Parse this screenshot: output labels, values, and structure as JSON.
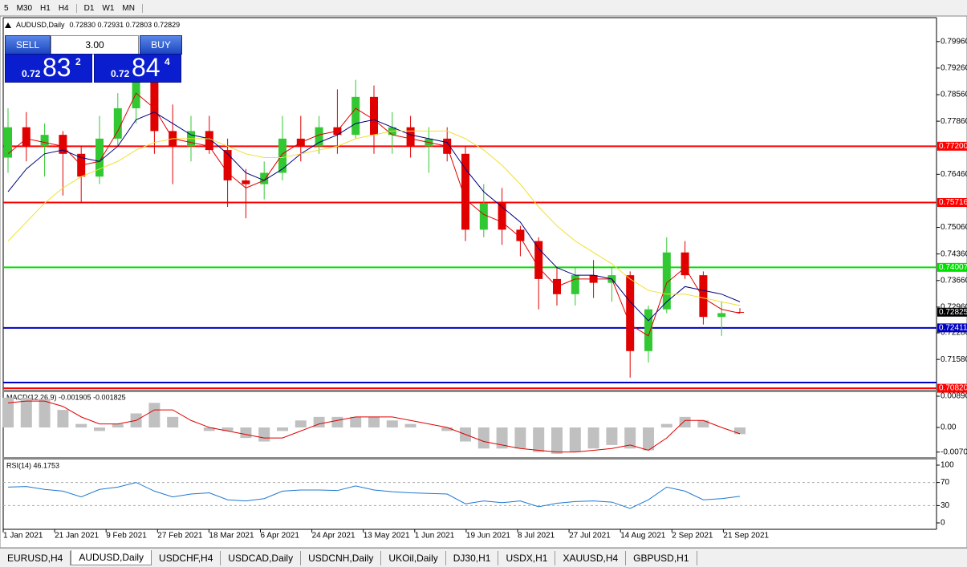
{
  "toolbar": {
    "groups": [
      [
        "5",
        "M30",
        "H1",
        "H4"
      ],
      [
        "D1",
        "W1",
        "MN"
      ]
    ]
  },
  "header": {
    "symbol": "AUDUSD,Daily",
    "ohlc": "0.72830 0.72931 0.72803 0.72829"
  },
  "trade_panel": {
    "sell": "SELL",
    "buy": "BUY",
    "lots": "3.00",
    "bid": {
      "prefix": "0.72",
      "big": "83",
      "small": "2"
    },
    "ask": {
      "prefix": "0.72",
      "big": "84",
      "small": "4"
    }
  },
  "tabs": [
    {
      "label": "EURUSD,H4"
    },
    {
      "label": "AUDUSD,Daily",
      "active": true
    },
    {
      "label": "USDCHF,H4"
    },
    {
      "label": "USDCAD,Daily"
    },
    {
      "label": "USDCNH,Daily"
    },
    {
      "label": "UKOil,Daily"
    },
    {
      "label": "DJ30,H1"
    },
    {
      "label": "USDX,H1"
    },
    {
      "label": "XAUUSD,H4"
    },
    {
      "label": "GBPUSD,H1"
    }
  ],
  "chart_data": [
    {
      "type": "candlestick",
      "bull_color": "#32c832",
      "bear_color": "#e00000",
      "xtick_labels": [
        "1 Jan 2021",
        "21 Jan 2021",
        "9 Feb 2021",
        "27 Feb 2021",
        "18 Mar 2021",
        "6 Apr 2021",
        "24 Apr 2021",
        "13 May 2021",
        "1 Jun 2021",
        "19 Jun 2021",
        "8 Jul 2021",
        "27 Jul 2021",
        "14 Aug 2021",
        "2 Sep 2021",
        "21 Sep 2021"
      ],
      "open": [
        0.769,
        0.777,
        0.772,
        0.775,
        0.77,
        0.764,
        0.774,
        0.782,
        0.789,
        0.776,
        0.772,
        0.776,
        0.771,
        0.763,
        0.762,
        0.765,
        0.774,
        0.772,
        0.777,
        0.775,
        0.785,
        0.775,
        0.777,
        0.772,
        0.774,
        0.77,
        0.75,
        0.757,
        0.75,
        0.747,
        0.737,
        0.733,
        0.738,
        0.736,
        0.738,
        0.718,
        0.729,
        0.744,
        0.738,
        0.727,
        0.7283
      ],
      "high": [
        0.782,
        0.781,
        0.778,
        0.776,
        0.772,
        0.78,
        0.786,
        0.8005,
        0.798,
        0.783,
        0.78,
        0.78,
        0.774,
        0.766,
        0.768,
        0.78,
        0.78,
        0.78,
        0.787,
        0.7895,
        0.788,
        0.781,
        0.78,
        0.777,
        0.777,
        0.772,
        0.762,
        0.761,
        0.751,
        0.748,
        0.74,
        0.74,
        0.742,
        0.74,
        0.739,
        0.73,
        0.748,
        0.747,
        0.739,
        0.731,
        0.7293
      ],
      "low": [
        0.765,
        0.768,
        0.764,
        0.759,
        0.757,
        0.762,
        0.772,
        0.778,
        0.77,
        0.762,
        0.768,
        0.77,
        0.756,
        0.753,
        0.758,
        0.763,
        0.768,
        0.77,
        0.77,
        0.774,
        0.77,
        0.77,
        0.769,
        0.765,
        0.768,
        0.747,
        0.748,
        0.746,
        0.743,
        0.729,
        0.73,
        0.73,
        0.732,
        0.731,
        0.711,
        0.715,
        0.728,
        0.737,
        0.725,
        0.722,
        0.728
      ],
      "close": [
        0.777,
        0.772,
        0.775,
        0.77,
        0.764,
        0.774,
        0.782,
        0.789,
        0.776,
        0.772,
        0.776,
        0.771,
        0.763,
        0.762,
        0.765,
        0.774,
        0.772,
        0.777,
        0.775,
        0.785,
        0.775,
        0.777,
        0.772,
        0.774,
        0.77,
        0.75,
        0.757,
        0.75,
        0.747,
        0.737,
        0.733,
        0.738,
        0.736,
        0.738,
        0.718,
        0.729,
        0.744,
        0.738,
        0.727,
        0.728,
        0.72829
      ],
      "moving_averages": [
        {
          "color": "#e00000",
          "values": [
            0.77,
            0.774,
            0.773,
            0.772,
            0.767,
            0.768,
            0.776,
            0.786,
            0.782,
            0.774,
            0.773,
            0.772,
            0.765,
            0.761,
            0.763,
            0.77,
            0.773,
            0.775,
            0.776,
            0.782,
            0.779,
            0.775,
            0.774,
            0.773,
            0.772,
            0.758,
            0.754,
            0.752,
            0.748,
            0.74,
            0.735,
            0.737,
            0.737,
            0.737,
            0.725,
            0.722,
            0.736,
            0.74,
            0.732,
            0.729,
            0.728
          ]
        },
        {
          "color": "#000080",
          "values": [
            0.76,
            0.766,
            0.77,
            0.771,
            0.769,
            0.768,
            0.772,
            0.779,
            0.781,
            0.778,
            0.775,
            0.774,
            0.77,
            0.765,
            0.763,
            0.766,
            0.77,
            0.773,
            0.775,
            0.778,
            0.779,
            0.777,
            0.775,
            0.774,
            0.773,
            0.766,
            0.76,
            0.756,
            0.752,
            0.745,
            0.74,
            0.738,
            0.738,
            0.737,
            0.731,
            0.726,
            0.731,
            0.735,
            0.734,
            0.733,
            0.731
          ]
        },
        {
          "color": "#f0e030",
          "values": [
            0.747,
            0.752,
            0.757,
            0.761,
            0.764,
            0.766,
            0.768,
            0.771,
            0.773,
            0.774,
            0.774,
            0.774,
            0.772,
            0.77,
            0.769,
            0.769,
            0.77,
            0.771,
            0.772,
            0.774,
            0.775,
            0.776,
            0.776,
            0.776,
            0.776,
            0.774,
            0.771,
            0.767,
            0.762,
            0.756,
            0.751,
            0.747,
            0.744,
            0.741,
            0.737,
            0.734,
            0.733,
            0.733,
            0.732,
            0.731,
            0.73
          ]
        }
      ],
      "ylim": [
        0.7078,
        0.8059
      ],
      "yticks": [
        {
          "value": 0.7996,
          "label": "0.79960"
        },
        {
          "value": 0.7926,
          "label": "0.79260"
        },
        {
          "value": 0.7856,
          "label": "0.78560"
        },
        {
          "value": 0.7786,
          "label": "0.77860"
        },
        {
          "value": 0.7646,
          "label": "0.76460"
        },
        {
          "value": 0.7506,
          "label": "0.75060"
        },
        {
          "value": 0.7436,
          "label": "0.74360"
        },
        {
          "value": 0.7366,
          "label": "0.73660"
        },
        {
          "value": 0.7296,
          "label": "0.72960"
        },
        {
          "value": 0.7228,
          "label": "0.72280"
        },
        {
          "value": 0.7158,
          "label": "0.71580"
        }
      ],
      "levels": [
        {
          "value": 0.772,
          "label": "0.77200",
          "color": "#ff0000"
        },
        {
          "value": 0.75716,
          "label": "0.75716",
          "color": "#ff0000"
        },
        {
          "value": 0.74007,
          "label": "0.74007",
          "color": "#00e000"
        },
        {
          "value": 0.72411,
          "label": "0.72411",
          "color": "#0000c0"
        },
        {
          "value": 0.7097,
          "color": "#0000c0"
        },
        {
          "value": 0.7082,
          "label": "0.70820",
          "color": "#ff0000"
        }
      ],
      "current": {
        "value": 0.72825,
        "label": "0.72825"
      }
    },
    {
      "type": "macd",
      "title": "MACD(12,26,9) -0.001905 -0.001825",
      "hist_color": "#c0c0c0",
      "signal_color": "#e00000",
      "histogram": [
        0.0085,
        0.0085,
        0.008,
        0.005,
        0.001,
        -0.001,
        0.001,
        0.004,
        0.007,
        0.003,
        0.0,
        -0.001,
        -0.001,
        -0.003,
        -0.004,
        -0.001,
        0.002,
        0.003,
        0.003,
        0.003,
        0.003,
        0.002,
        0.001,
        0.0,
        -0.001,
        -0.004,
        -0.006,
        -0.006,
        -0.006,
        -0.007,
        -0.0075,
        -0.007,
        -0.006,
        -0.005,
        -0.006,
        -0.0065,
        0.001,
        0.003,
        0.002,
        0.0,
        -0.0019
      ],
      "signal": [
        0.007,
        0.0075,
        0.0075,
        0.006,
        0.003,
        0.001,
        0.001,
        0.002,
        0.005,
        0.005,
        0.002,
        0.0,
        -0.001,
        -0.002,
        -0.003,
        -0.003,
        -0.001,
        0.001,
        0.002,
        0.003,
        0.003,
        0.003,
        0.002,
        0.001,
        0.0,
        -0.002,
        -0.004,
        -0.005,
        -0.006,
        -0.0065,
        -0.007,
        -0.007,
        -0.0065,
        -0.006,
        -0.005,
        -0.0065,
        -0.003,
        0.002,
        0.002,
        0.0,
        -0.0018
      ],
      "ylim": [
        -0.00845,
        0.01005
      ],
      "yticks": [
        {
          "value": 0.008904,
          "label": "0.008904"
        },
        {
          "value": 0,
          "label": "0.00"
        },
        {
          "value": -0.00701,
          "label": "-0.00701"
        }
      ]
    },
    {
      "type": "rsi",
      "title": "RSI(14) 46.1753",
      "color": "#1e78d2",
      "values": [
        62,
        63,
        58,
        55,
        45,
        58,
        62,
        70,
        55,
        45,
        50,
        52,
        40,
        38,
        42,
        55,
        57,
        57,
        56,
        64,
        57,
        54,
        52,
        51,
        50,
        33,
        38,
        35,
        38,
        28,
        34,
        37,
        38,
        36,
        25,
        40,
        62,
        55,
        40,
        42,
        46
      ],
      "ylim": [
        0,
        100
      ],
      "yticks": [
        100,
        70,
        30,
        0
      ],
      "levels": [
        70,
        30
      ]
    }
  ]
}
